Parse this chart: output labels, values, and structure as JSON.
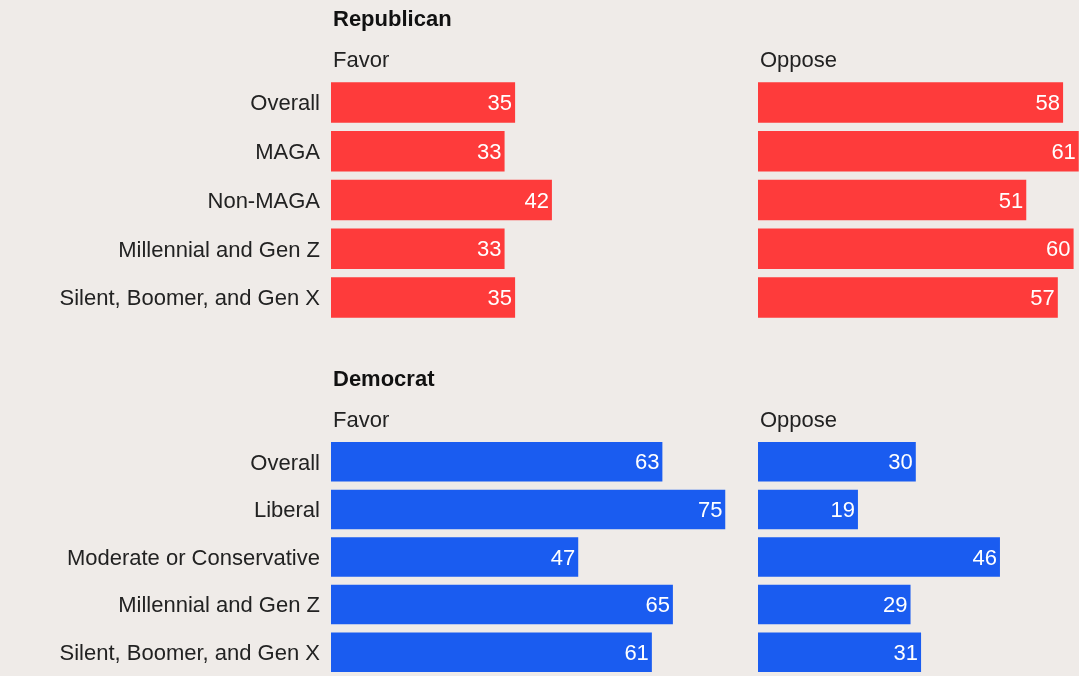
{
  "chart_data": [
    {
      "type": "bar",
      "orientation": "horizontal",
      "title": "Republican",
      "subtitle": "Favor",
      "categories": [
        "Overall",
        "MAGA",
        "Non-MAGA",
        "Millennial and Gen Z",
        "Silent, Boomer, and Gen X"
      ],
      "values": [
        35,
        33,
        42,
        33,
        35
      ],
      "color": "#fe3b3b",
      "data_labels": true,
      "tick_labels": "y"
    },
    {
      "type": "bar",
      "orientation": "horizontal",
      "subtitle": "Oppose",
      "categories": [
        null,
        null,
        null,
        null,
        null
      ],
      "values": [
        58,
        61,
        51,
        60,
        57
      ],
      "color": "#fe3b3b",
      "data_labels": true,
      "tick_labels": false
    },
    {
      "type": "bar",
      "orientation": "horizontal",
      "title": "Democrat",
      "subtitle": "Favor",
      "categories": [
        "Overall",
        "Liberal",
        "Moderate or Conservative",
        "Millennial and Gen Z",
        "Silent, Boomer, and Gen X"
      ],
      "values": [
        63,
        75,
        47,
        65,
        61
      ],
      "color": "#1a5cf0",
      "data_labels": true,
      "tick_labels": "y"
    },
    {
      "type": "bar",
      "orientation": "horizontal",
      "subtitle": "Oppose",
      "categories": [
        null,
        null,
        null,
        null,
        null
      ],
      "values": [
        30,
        19,
        46,
        29,
        31
      ],
      "color": "#1a5cf0",
      "data_labels": true,
      "tick_labels": false
    }
  ]
}
